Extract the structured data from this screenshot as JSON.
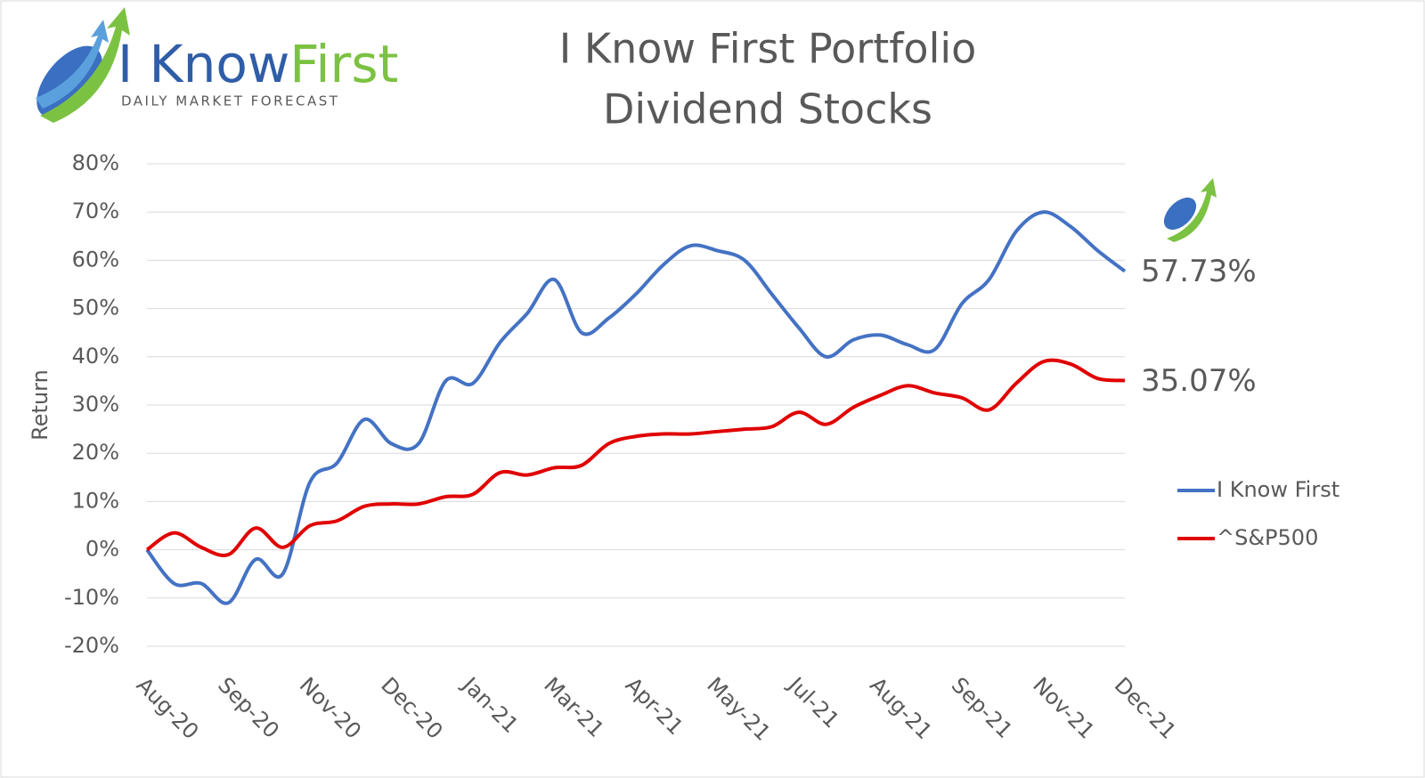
{
  "logo": {
    "name_1": "I Know",
    "name_2": "First",
    "tagline": "DAILY MARKET FORECAST"
  },
  "chart_data": {
    "type": "line",
    "title": [
      "I Know First Portfolio",
      "Dividend Stocks"
    ],
    "y_label": "Return",
    "categories": [
      "Aug-20",
      null,
      null,
      "Sep-20",
      null,
      null,
      "Nov-20",
      null,
      null,
      "Dec-20",
      null,
      null,
      "Jan-21",
      null,
      null,
      "Mar-21",
      null,
      null,
      "Apr-21",
      null,
      null,
      "May-21",
      null,
      null,
      "Jul-21",
      null,
      null,
      "Aug-21",
      null,
      null,
      "Sep-21",
      null,
      null,
      "Nov-21",
      null,
      null,
      "Dec-21"
    ],
    "series": [
      {
        "name": "I Know First",
        "color": "#4472c4",
        "values": [
          0,
          -7,
          -7,
          -11,
          -2,
          -5,
          14,
          18,
          27,
          22,
          22,
          35,
          34.5,
          43,
          49,
          56,
          45,
          48,
          53,
          59,
          63,
          62,
          60,
          53,
          46,
          40,
          43.5,
          44.5,
          42.5,
          41.5,
          51,
          56,
          66,
          70,
          67,
          62,
          57.73
        ],
        "value_labels": [
          null,
          null,
          null,
          null,
          null,
          null,
          null,
          null,
          null,
          null,
          null,
          null,
          null,
          null,
          null,
          null,
          null,
          null,
          null,
          null,
          null,
          null,
          null,
          null,
          null,
          null,
          null,
          null,
          null,
          null,
          null,
          null,
          null,
          null,
          null,
          null,
          "57.73%"
        ]
      },
      {
        "name": "^S&P500",
        "color": "#e00000",
        "values": [
          0,
          3.5,
          0.5,
          -1,
          4.5,
          0.5,
          5,
          6,
          9,
          9.5,
          9.5,
          11,
          11.5,
          16,
          15.5,
          17,
          17.5,
          22,
          23.5,
          24,
          24,
          24.5,
          25,
          25.5,
          28.5,
          26,
          29.5,
          32,
          34,
          32.5,
          31.5,
          29,
          34.5,
          39,
          38.5,
          35.5,
          35.07
        ],
        "value_labels": [
          null,
          null,
          null,
          null,
          null,
          null,
          null,
          null,
          null,
          null,
          null,
          null,
          null,
          null,
          null,
          null,
          null,
          null,
          null,
          null,
          null,
          null,
          null,
          null,
          null,
          null,
          null,
          null,
          null,
          null,
          null,
          null,
          null,
          null,
          null,
          null,
          "35.07%"
        ]
      }
    ],
    "ylim": [
      -20,
      80
    ],
    "yticks": [
      {
        "value": -20,
        "label": "-20%"
      },
      {
        "value": -10,
        "label": "-10%"
      },
      {
        "value": 0,
        "label": "0%"
      },
      {
        "value": 10,
        "label": "10%"
      },
      {
        "value": 20,
        "label": "20%"
      },
      {
        "value": 30,
        "label": "30%"
      },
      {
        "value": 40,
        "label": "40%"
      },
      {
        "value": 50,
        "label": "50%"
      },
      {
        "value": 60,
        "label": "60%"
      },
      {
        "value": 70,
        "label": "70%"
      },
      {
        "value": 80,
        "label": "80%"
      }
    ],
    "grid": true,
    "legend": "right"
  }
}
